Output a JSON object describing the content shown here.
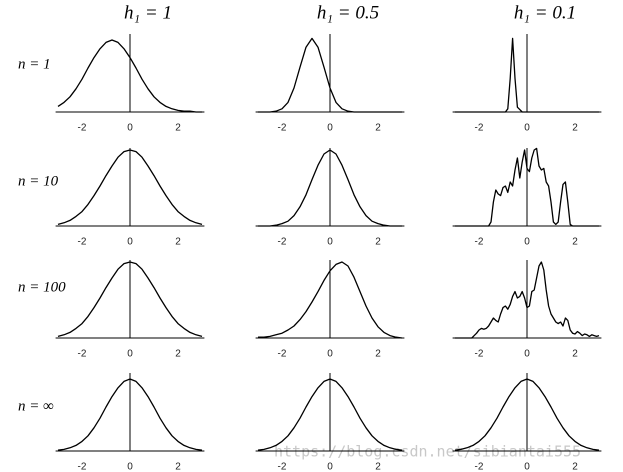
{
  "column_titles": [
    "h₁ = 1",
    "h₁ = 0.5",
    "h₁ = 0.1"
  ],
  "row_labels": [
    "n = 1",
    "n = 10",
    "n = 100",
    "n = ∞"
  ],
  "watermark": "https://blog.csdn.net/sibiantai555",
  "chart_data": [
    {
      "type": "line",
      "color": "#000000",
      "xlim": [
        -3.1,
        3.1
      ],
      "ylim": [
        0,
        1
      ],
      "xticks": [
        -2,
        0,
        2
      ],
      "x": [
        -3,
        -2.75,
        -2.5,
        -2.25,
        -2,
        -1.75,
        -1.5,
        -1.25,
        -1,
        -0.75,
        -0.5,
        -0.25,
        0,
        0.25,
        0.5,
        0.75,
        1,
        1.25,
        1.5,
        1.75,
        2,
        2.25,
        2.5,
        2.75,
        3
      ],
      "values": [
        0.07,
        0.12,
        0.19,
        0.29,
        0.41,
        0.55,
        0.68,
        0.79,
        0.87,
        0.9,
        0.87,
        0.79,
        0.68,
        0.55,
        0.41,
        0.29,
        0.19,
        0.12,
        0.07,
        0.04,
        0.02,
        0.01,
        0.01,
        0,
        0
      ]
    },
    {
      "type": "line",
      "color": "#000000",
      "xlim": [
        -3.1,
        3.1
      ],
      "ylim": [
        0,
        1
      ],
      "xticks": [
        -2,
        0,
        2
      ],
      "x": [
        -3,
        -2.75,
        -2.5,
        -2.25,
        -2,
        -1.75,
        -1.5,
        -1.25,
        -1,
        -0.75,
        -0.5,
        -0.25,
        0,
        0.25,
        0.5,
        0.75,
        1,
        1.25,
        1.5,
        1.75,
        2,
        2.25,
        2.5,
        2.75,
        3
      ],
      "values": [
        0,
        0,
        0,
        0.01,
        0.04,
        0.12,
        0.3,
        0.56,
        0.81,
        0.92,
        0.81,
        0.56,
        0.3,
        0.12,
        0.04,
        0.01,
        0,
        0,
        0,
        0,
        0,
        0,
        0,
        0,
        0
      ]
    },
    {
      "type": "line",
      "color": "#000000",
      "xlim": [
        -3.1,
        3.1
      ],
      "ylim": [
        0,
        1
      ],
      "xticks": [
        -2,
        0,
        2
      ],
      "x": [
        -3,
        -2.9,
        -2.8,
        -2.7,
        -2.6,
        -2.5,
        -2.4,
        -2.3,
        -2.2,
        -2.1,
        -2,
        -1.9,
        -1.8,
        -1.7,
        -1.6,
        -1.5,
        -1.4,
        -1.3,
        -1.2,
        -1.1,
        -1,
        -0.9,
        -0.8,
        -0.7,
        -0.6,
        -0.5,
        -0.4,
        -0.3,
        -0.2,
        -0.1,
        0,
        0.1,
        0.2,
        0.3,
        0.4,
        0.5,
        0.6,
        0.7,
        0.8,
        0.9,
        1,
        1.1,
        1.2,
        1.3,
        1.4,
        1.5,
        1.6,
        1.7,
        1.8,
        1.9,
        2,
        2.1,
        2.2,
        2.3,
        2.4,
        2.5,
        2.6,
        2.7,
        2.8,
        2.9,
        3
      ],
      "values": [
        0,
        0,
        0,
        0,
        0,
        0,
        0,
        0,
        0,
        0,
        0,
        0,
        0,
        0,
        0,
        0,
        0,
        0,
        0,
        0,
        0,
        0,
        0.04,
        0.42,
        0.92,
        0.42,
        0.06,
        0.03,
        0,
        0,
        0,
        0,
        0,
        0,
        0,
        0,
        0,
        0,
        0,
        0,
        0,
        0,
        0,
        0,
        0,
        0,
        0,
        0,
        0,
        0,
        0,
        0,
        0,
        0,
        0,
        0,
        0,
        0,
        0,
        0,
        0
      ]
    },
    {
      "type": "line",
      "color": "#000000",
      "xlim": [
        -3.1,
        3.1
      ],
      "ylim": [
        0,
        1
      ],
      "xticks": [
        -2,
        0,
        2
      ],
      "x": [
        -3,
        -2.75,
        -2.5,
        -2.25,
        -2,
        -1.75,
        -1.5,
        -1.25,
        -1,
        -0.75,
        -0.5,
        -0.25,
        0,
        0.25,
        0.5,
        0.75,
        1,
        1.25,
        1.5,
        1.75,
        2,
        2.25,
        2.5,
        2.75,
        3
      ],
      "values": [
        0.02,
        0.04,
        0.07,
        0.12,
        0.18,
        0.27,
        0.38,
        0.5,
        0.63,
        0.75,
        0.86,
        0.93,
        0.95,
        0.93,
        0.86,
        0.75,
        0.63,
        0.5,
        0.38,
        0.27,
        0.18,
        0.12,
        0.07,
        0.04,
        0.02
      ]
    },
    {
      "type": "line",
      "color": "#000000",
      "xlim": [
        -3.1,
        3.1
      ],
      "ylim": [
        0,
        1
      ],
      "xticks": [
        -2,
        0,
        2
      ],
      "x": [
        -3,
        -2.75,
        -2.5,
        -2.25,
        -2,
        -1.75,
        -1.5,
        -1.25,
        -1,
        -0.75,
        -0.5,
        -0.25,
        0,
        0.25,
        0.5,
        0.75,
        1,
        1.25,
        1.5,
        1.75,
        2,
        2.25,
        2.5,
        2.75,
        3
      ],
      "values": [
        0,
        0,
        0,
        0.01,
        0.03,
        0.06,
        0.13,
        0.24,
        0.39,
        0.58,
        0.76,
        0.9,
        0.95,
        0.9,
        0.76,
        0.58,
        0.39,
        0.24,
        0.13,
        0.06,
        0.03,
        0.01,
        0,
        0,
        0
      ]
    },
    {
      "type": "line",
      "color": "#000000",
      "xlim": [
        -3.1,
        3.1
      ],
      "ylim": [
        0,
        1
      ],
      "xticks": [
        -2,
        0,
        2
      ],
      "x": [
        -3,
        -2.9,
        -2.8,
        -2.7,
        -2.6,
        -2.5,
        -2.4,
        -2.3,
        -2.2,
        -2.1,
        -2,
        -1.9,
        -1.8,
        -1.7,
        -1.6,
        -1.5,
        -1.4,
        -1.3,
        -1.2,
        -1.1,
        -1,
        -0.9,
        -0.8,
        -0.7,
        -0.6,
        -0.5,
        -0.4,
        -0.3,
        -0.2,
        -0.1,
        0,
        0.1,
        0.2,
        0.3,
        0.4,
        0.5,
        0.6,
        0.7,
        0.8,
        0.9,
        1,
        1.1,
        1.2,
        1.3,
        1.4,
        1.5,
        1.6,
        1.7,
        1.8,
        1.9,
        2,
        2.1,
        2.2,
        2.3,
        2.4,
        2.5,
        2.6,
        2.7,
        2.8,
        2.9,
        3
      ],
      "values": [
        0,
        0,
        0,
        0,
        0,
        0,
        0,
        0,
        0,
        0,
        0,
        0,
        0,
        0,
        0,
        0.05,
        0.3,
        0.45,
        0.4,
        0.38,
        0.48,
        0.5,
        0.42,
        0.55,
        0.5,
        0.7,
        0.85,
        0.6,
        0.8,
        0.95,
        0.72,
        0.68,
        0.85,
        0.95,
        0.97,
        0.75,
        0.7,
        0.72,
        0.55,
        0.5,
        0.3,
        0.05,
        0.02,
        0.05,
        0.3,
        0.52,
        0.55,
        0.3,
        0.02,
        0,
        0,
        0,
        0,
        0,
        0,
        0,
        0,
        0,
        0,
        0,
        0
      ]
    },
    {
      "type": "line",
      "color": "#000000",
      "xlim": [
        -3.1,
        3.1
      ],
      "ylim": [
        0,
        1
      ],
      "xticks": [
        -2,
        0,
        2
      ],
      "x": [
        -3,
        -2.75,
        -2.5,
        -2.25,
        -2,
        -1.75,
        -1.5,
        -1.25,
        -1,
        -0.75,
        -0.5,
        -0.25,
        0,
        0.25,
        0.5,
        0.75,
        1,
        1.25,
        1.5,
        1.75,
        2,
        2.25,
        2.5,
        2.75,
        3
      ],
      "values": [
        0.02,
        0.04,
        0.07,
        0.12,
        0.18,
        0.27,
        0.38,
        0.5,
        0.63,
        0.75,
        0.86,
        0.93,
        0.95,
        0.93,
        0.86,
        0.75,
        0.63,
        0.5,
        0.38,
        0.27,
        0.18,
        0.12,
        0.07,
        0.04,
        0.02
      ]
    },
    {
      "type": "line",
      "color": "#000000",
      "xlim": [
        -3.1,
        3.1
      ],
      "ylim": [
        0,
        1
      ],
      "xticks": [
        -2,
        0,
        2
      ],
      "x": [
        -3,
        -2.75,
        -2.5,
        -2.25,
        -2,
        -1.75,
        -1.5,
        -1.25,
        -1,
        -0.75,
        -0.5,
        -0.25,
        0,
        0.25,
        0.5,
        0.75,
        1,
        1.25,
        1.5,
        1.75,
        2,
        2.25,
        2.5,
        2.75,
        3
      ],
      "values": [
        0.01,
        0.01,
        0.02,
        0.04,
        0.06,
        0.1,
        0.15,
        0.23,
        0.33,
        0.45,
        0.58,
        0.72,
        0.84,
        0.92,
        0.95,
        0.9,
        0.76,
        0.58,
        0.4,
        0.25,
        0.14,
        0.07,
        0.03,
        0.01,
        0
      ]
    },
    {
      "type": "line",
      "color": "#000000",
      "xlim": [
        -3.1,
        3.1
      ],
      "ylim": [
        0,
        1
      ],
      "xticks": [
        -2,
        0,
        2
      ],
      "x": [
        -3,
        -2.9,
        -2.8,
        -2.7,
        -2.6,
        -2.5,
        -2.4,
        -2.3,
        -2.2,
        -2.1,
        -2,
        -1.9,
        -1.8,
        -1.7,
        -1.6,
        -1.5,
        -1.4,
        -1.3,
        -1.2,
        -1.1,
        -1,
        -0.9,
        -0.8,
        -0.7,
        -0.6,
        -0.5,
        -0.4,
        -0.3,
        -0.2,
        -0.1,
        0,
        0.1,
        0.2,
        0.3,
        0.4,
        0.5,
        0.6,
        0.7,
        0.8,
        0.9,
        1,
        1.1,
        1.2,
        1.3,
        1.4,
        1.5,
        1.6,
        1.7,
        1.8,
        1.9,
        2,
        2.1,
        2.2,
        2.3,
        2.4,
        2.5,
        2.6,
        2.7,
        2.8,
        2.9,
        3
      ],
      "values": [
        0,
        0,
        0,
        0,
        0,
        0,
        0,
        0,
        0.03,
        0.06,
        0.1,
        0.12,
        0.11,
        0.12,
        0.15,
        0.2,
        0.25,
        0.22,
        0.2,
        0.3,
        0.38,
        0.4,
        0.36,
        0.42,
        0.52,
        0.58,
        0.5,
        0.52,
        0.58,
        0.5,
        0.38,
        0.4,
        0.58,
        0.6,
        0.75,
        0.9,
        0.95,
        0.85,
        0.6,
        0.4,
        0.3,
        0.25,
        0.2,
        0.18,
        0.2,
        0.15,
        0.25,
        0.22,
        0.1,
        0.06,
        0.05,
        0.08,
        0.06,
        0.03,
        0.05,
        0.04,
        0.02,
        0.04,
        0.03,
        0.02,
        0.03
      ]
    },
    {
      "type": "line",
      "color": "#000000",
      "xlim": [
        -3.1,
        3.1
      ],
      "ylim": [
        0,
        1
      ],
      "xticks": [
        -2,
        0,
        2
      ],
      "x": [
        -3,
        -2.75,
        -2.5,
        -2.25,
        -2,
        -1.75,
        -1.5,
        -1.25,
        -1,
        -0.75,
        -0.5,
        -0.25,
        0,
        0.25,
        0.5,
        0.75,
        1,
        1.25,
        1.5,
        1.75,
        2,
        2.25,
        2.5,
        2.75,
        3
      ],
      "values": [
        0.01,
        0.02,
        0.04,
        0.07,
        0.12,
        0.19,
        0.29,
        0.41,
        0.55,
        0.68,
        0.79,
        0.87,
        0.9,
        0.87,
        0.79,
        0.68,
        0.55,
        0.41,
        0.29,
        0.19,
        0.12,
        0.07,
        0.04,
        0.02,
        0.01
      ]
    },
    {
      "type": "line",
      "color": "#000000",
      "xlim": [
        -3.1,
        3.1
      ],
      "ylim": [
        0,
        1
      ],
      "xticks": [
        -2,
        0,
        2
      ],
      "x": [
        -3,
        -2.75,
        -2.5,
        -2.25,
        -2,
        -1.75,
        -1.5,
        -1.25,
        -1,
        -0.75,
        -0.5,
        -0.25,
        0,
        0.25,
        0.5,
        0.75,
        1,
        1.25,
        1.5,
        1.75,
        2,
        2.25,
        2.5,
        2.75,
        3
      ],
      "values": [
        0.01,
        0.02,
        0.04,
        0.07,
        0.12,
        0.19,
        0.29,
        0.41,
        0.55,
        0.68,
        0.79,
        0.87,
        0.9,
        0.87,
        0.79,
        0.68,
        0.55,
        0.41,
        0.29,
        0.19,
        0.12,
        0.07,
        0.04,
        0.02,
        0.01
      ]
    },
    {
      "type": "line",
      "color": "#000000",
      "xlim": [
        -3.1,
        3.1
      ],
      "ylim": [
        0,
        1
      ],
      "xticks": [
        -2,
        0,
        2
      ],
      "x": [
        -3,
        -2.75,
        -2.5,
        -2.25,
        -2,
        -1.75,
        -1.5,
        -1.25,
        -1,
        -0.75,
        -0.5,
        -0.25,
        0,
        0.25,
        0.5,
        0.75,
        1,
        1.25,
        1.5,
        1.75,
        2,
        2.25,
        2.5,
        2.75,
        3
      ],
      "values": [
        0.01,
        0.02,
        0.04,
        0.07,
        0.12,
        0.19,
        0.29,
        0.41,
        0.55,
        0.68,
        0.79,
        0.87,
        0.9,
        0.87,
        0.79,
        0.68,
        0.55,
        0.41,
        0.29,
        0.19,
        0.12,
        0.07,
        0.04,
        0.02,
        0.01
      ]
    }
  ]
}
